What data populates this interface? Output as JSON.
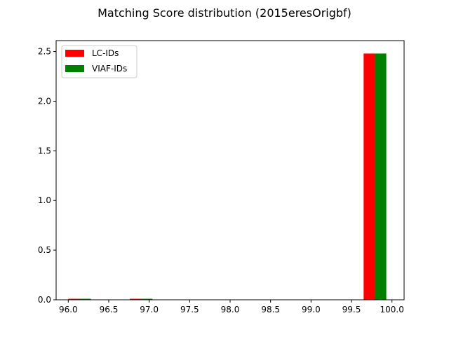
{
  "chart_data": {
    "type": "bar",
    "title": "Matching Score distribution (2015eresOrigbf)",
    "xlabel": "",
    "ylabel": "",
    "xlim": [
      95.85,
      100.15
    ],
    "ylim": [
      0,
      2.61
    ],
    "xticks": [
      96.0,
      96.5,
      97.0,
      97.5,
      98.0,
      98.5,
      99.0,
      99.5,
      100.0
    ],
    "xtick_labels": [
      "96.0",
      "96.5",
      "97.0",
      "97.5",
      "98.0",
      "98.5",
      "99.0",
      "99.5",
      "100.0"
    ],
    "yticks": [
      0.0,
      0.5,
      1.0,
      1.5,
      2.0,
      2.5
    ],
    "ytick_labels": [
      "0.0",
      "0.5",
      "1.0",
      "1.5",
      "2.0",
      "2.5"
    ],
    "bar_width": 0.14,
    "grid": false,
    "legend_position": "top-left",
    "series": [
      {
        "name": "LC-IDs",
        "color": "#ff0000",
        "x": [
          96.07,
          96.83,
          99.72
        ],
        "values": [
          0.01,
          0.01,
          2.48
        ]
      },
      {
        "name": "VIAF-IDs",
        "color": "#008000",
        "x": [
          96.21,
          96.97,
          99.86
        ],
        "values": [
          0.01,
          0.01,
          2.48
        ]
      }
    ]
  }
}
